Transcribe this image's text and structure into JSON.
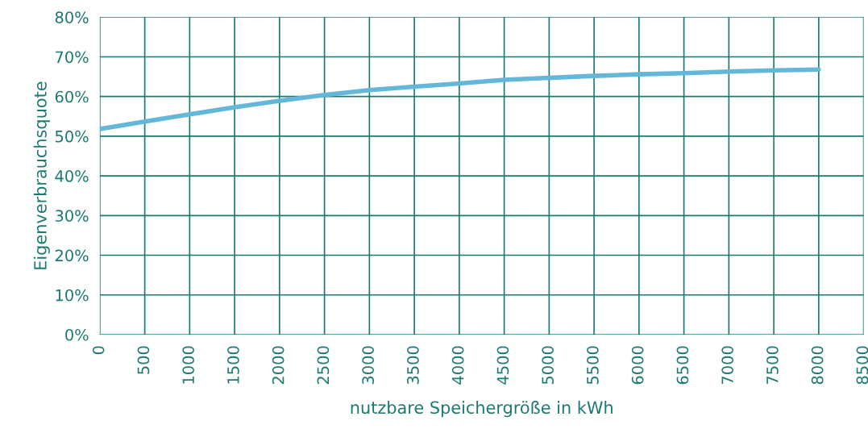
{
  "chart_data": {
    "type": "line",
    "xlabel": "nutzbare Speichergröße in kWh",
    "ylabel": "Eigenverbrauchsquote",
    "x": [
      0,
      500,
      1000,
      1500,
      2000,
      2500,
      3000,
      3500,
      4000,
      4500,
      5000,
      5500,
      6000,
      6500,
      7000,
      7500,
      8000
    ],
    "series": [
      {
        "color": "#63b8da",
        "values": [
          51.8,
          53.7,
          55.5,
          57.3,
          58.9,
          60.4,
          61.6,
          62.5,
          63.3,
          64.2,
          64.7,
          65.2,
          65.6,
          65.9,
          66.3,
          66.6,
          66.8
        ]
      }
    ],
    "xlim": [
      0,
      8500
    ],
    "xticks": [
      0,
      500,
      1000,
      1500,
      2000,
      2500,
      3000,
      3500,
      4000,
      4500,
      5000,
      5500,
      6000,
      6500,
      7000,
      7500,
      8000,
      8500
    ],
    "ylim": [
      0,
      80
    ],
    "yticks": [
      {
        "value": 0,
        "label": "0%"
      },
      {
        "value": 10,
        "label": "10%"
      },
      {
        "value": 20,
        "label": "20%"
      },
      {
        "value": 30,
        "label": "30%"
      },
      {
        "value": 40,
        "label": "40%"
      },
      {
        "value": 50,
        "label": "50%"
      },
      {
        "value": 60,
        "label": "60%"
      },
      {
        "value": 70,
        "label": "70%"
      },
      {
        "value": 80,
        "label": "80%"
      }
    ],
    "grid": true,
    "legend": false
  }
}
